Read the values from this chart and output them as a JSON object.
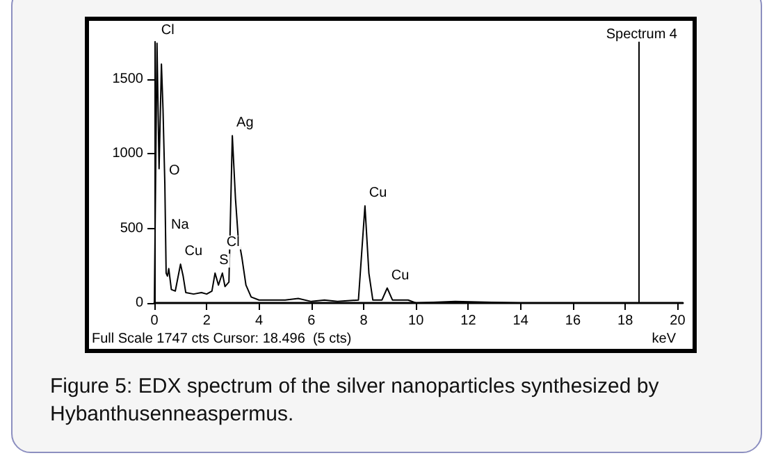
{
  "chart_data": {
    "type": "line",
    "title": "Figure 5: EDX spectrum of the silver nanoparticles synthesized by Hybanthusenneaspermus.",
    "xlabel": "keV",
    "x": [
      0,
      0.1,
      0.18,
      0.27,
      0.33,
      0.4,
      0.45,
      0.5,
      0.55,
      0.65,
      0.8,
      1.0,
      1.1,
      1.2,
      1.5,
      1.8,
      2.0,
      2.2,
      2.32,
      2.45,
      2.6,
      2.7,
      2.85,
      2.98,
      3.1,
      3.2,
      3.35,
      3.5,
      3.7,
      4.0,
      5.0,
      5.5,
      6.0,
      6.5,
      7.0,
      7.8,
      7.95,
      8.05,
      8.2,
      8.35,
      8.7,
      8.9,
      9.1,
      9.7,
      10,
      11.5,
      14,
      20
    ],
    "series": [
      {
        "color": "#000000",
        "values": [
          0,
          1740,
          900,
          1600,
          1300,
          800,
          200,
          180,
          230,
          90,
          80,
          260,
          180,
          70,
          60,
          70,
          60,
          80,
          200,
          120,
          200,
          110,
          140,
          1120,
          700,
          450,
          300,
          120,
          40,
          20,
          20,
          30,
          10,
          20,
          10,
          20,
          400,
          650,
          200,
          20,
          20,
          100,
          20,
          20,
          0,
          10,
          0,
          0
        ]
      }
    ],
    "xlim": [
      0,
      20.2
    ],
    "xticks": [
      0,
      2,
      4,
      6,
      8,
      10,
      12,
      14,
      16,
      18,
      20
    ],
    "ylim": [
      0,
      1750
    ],
    "yticks": [
      0,
      500,
      1000,
      1500
    ],
    "grid": false,
    "marker": "none",
    "line_style": "solid",
    "ref_lines": [
      {
        "axis": "x",
        "value": 18.496,
        "color": "#000000"
      }
    ],
    "annotations": [
      "Spectrum 4",
      "Full Scale 1747 cts Cursor: 18.496  (5 cts)",
      "Na",
      {
        "text": "Cl",
        "x": 0.1,
        "y": 1740
      },
      {
        "text": "O",
        "x": 0.4,
        "y": 800
      },
      {
        "text": "Cu",
        "x": 1.0,
        "y": 260
      },
      {
        "text": "S",
        "x": 2.32,
        "y": 200
      },
      {
        "text": "Cl",
        "x": 2.6,
        "y": 200
      },
      {
        "text": "Ag",
        "x": 2.98,
        "y": 1120
      },
      {
        "text": "Cu",
        "x": 8.05,
        "y": 650
      },
      {
        "text": "Cu",
        "x": 8.9,
        "y": 100
      }
    ]
  }
}
